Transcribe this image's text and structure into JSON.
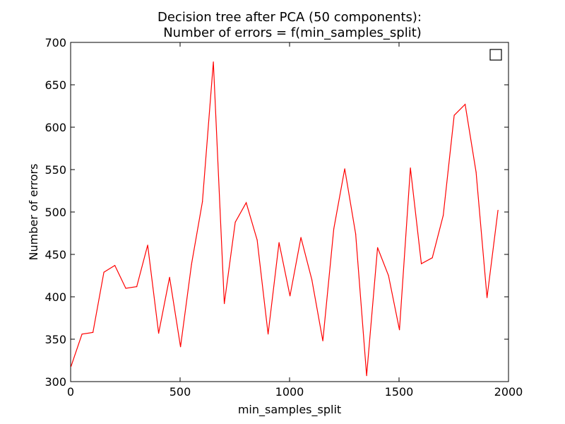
{
  "chart_data": {
    "type": "line",
    "title_line1": "Decision tree after PCA (50 components):",
    "title_line2": "Number of errors = f(min_samples_split)",
    "xlabel": "min_samples_split",
    "ylabel": "Number of errors",
    "xlim": [
      0,
      2000
    ],
    "ylim": [
      300,
      700
    ],
    "x_ticks": [
      0,
      500,
      1000,
      1500,
      2000
    ],
    "y_ticks": [
      300,
      350,
      400,
      450,
      500,
      550,
      600,
      650,
      700
    ],
    "grid": false,
    "legend": "top-right (empty)",
    "series": [
      {
        "color": "#ff0000",
        "x": [
          2,
          52,
          102,
          152,
          202,
          252,
          302,
          352,
          402,
          452,
          502,
          552,
          602,
          652,
          702,
          752,
          802,
          852,
          902,
          952,
          1002,
          1052,
          1102,
          1152,
          1202,
          1252,
          1302,
          1352,
          1402,
          1452,
          1502,
          1552,
          1602,
          1652,
          1702,
          1752,
          1802,
          1852,
          1902,
          1952
        ],
        "y": [
          318,
          356,
          358,
          429,
          437,
          410,
          412,
          461,
          357,
          423,
          341,
          438,
          512,
          677,
          392,
          488,
          511,
          467,
          356,
          464,
          401,
          470,
          420,
          348,
          480,
          551,
          474,
          307,
          458,
          425,
          361,
          552,
          439,
          446,
          496,
          614,
          627,
          547,
          399,
          502
        ]
      }
    ]
  }
}
